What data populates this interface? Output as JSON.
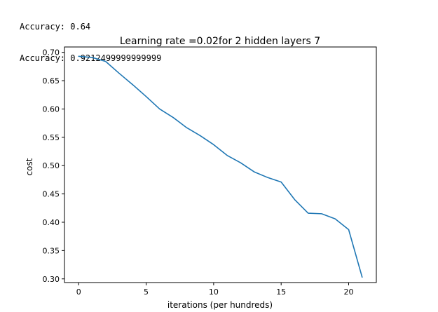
{
  "output_lines": [
    "Accuracy: 0.64",
    "Accuracy: 0.9212499999999999"
  ],
  "chart_data": {
    "type": "line",
    "title": "Learning rate =0.02for 2 hidden layers 7",
    "xlabel": "iterations (per hundreds)",
    "ylabel": "cost",
    "xlim": [
      -1.05,
      22.05
    ],
    "ylim": [
      0.2935,
      0.7095
    ],
    "xticks": [
      0,
      5,
      10,
      15,
      20
    ],
    "yticks": [
      0.3,
      0.35,
      0.4,
      0.45,
      0.5,
      0.55,
      0.6,
      0.65,
      0.7
    ],
    "grid": false,
    "color": "#1f77b4",
    "series": [
      {
        "x": [
          0,
          1,
          2,
          3,
          4,
          5,
          6,
          7,
          8,
          9,
          10,
          11,
          12,
          13,
          14,
          15,
          16,
          17,
          18,
          19,
          20,
          21
        ],
        "y": [
          0.693,
          0.691,
          0.684,
          0.663,
          0.643,
          0.622,
          0.6,
          0.585,
          0.567,
          0.553,
          0.537,
          0.518,
          0.505,
          0.489,
          0.479,
          0.471,
          0.44,
          0.416,
          0.415,
          0.406,
          0.387,
          0.303
        ]
      }
    ]
  }
}
